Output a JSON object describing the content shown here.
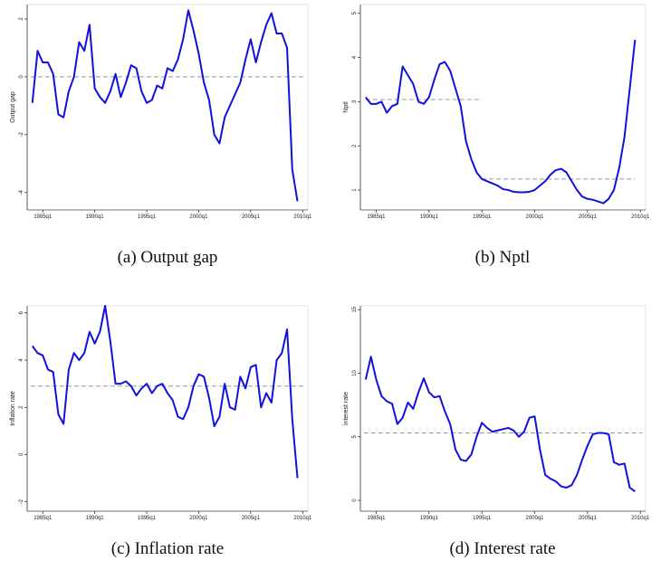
{
  "chart_data": [
    {
      "type": "line",
      "caption": "(a) Output gap",
      "ylabel": "Output gap",
      "color": "#1010e0",
      "x": [
        "1984q1",
        "1984q3",
        "1985q1",
        "1985q3",
        "1986q1",
        "1986q3",
        "1987q1",
        "1987q3",
        "1988q1",
        "1988q3",
        "1989q1",
        "1989q3",
        "1990q1",
        "1990q3",
        "1991q1",
        "1991q3",
        "1992q1",
        "1992q3",
        "1993q1",
        "1993q3",
        "1994q1",
        "1994q3",
        "1995q1",
        "1995q3",
        "1996q1",
        "1996q3",
        "1997q1",
        "1997q3",
        "1998q1",
        "1998q3",
        "1999q1",
        "1999q3",
        "2000q1",
        "2000q3",
        "2001q1",
        "2001q3",
        "2002q1",
        "2002q3",
        "2003q1",
        "2003q3",
        "2004q1",
        "2004q3",
        "2005q1",
        "2005q3",
        "2006q1",
        "2006q3",
        "2007q1",
        "2007q3",
        "2008q1",
        "2008q3",
        "2009q1",
        "2009q3"
      ],
      "values": [
        -0.9,
        0.9,
        0.5,
        0.5,
        0.1,
        -1.3,
        -1.4,
        -0.5,
        0,
        1.2,
        0.9,
        1.8,
        -0.4,
        -0.7,
        -0.9,
        -0.5,
        0.1,
        -0.7,
        -0.2,
        0.4,
        0.3,
        -0.5,
        -0.9,
        -0.8,
        -0.3,
        -0.4,
        0.3,
        0.2,
        0.6,
        1.3,
        2.3,
        1.6,
        0.8,
        -0.2,
        -0.8,
        -2.0,
        -2.3,
        -1.4,
        -1.0,
        -0.6,
        -0.2,
        0.6,
        1.3,
        0.5,
        1.2,
        1.8,
        2.2,
        1.5,
        1.5,
        1.0,
        -3.2,
        -4.3
      ],
      "xlim": [
        "1983q3",
        "2010q3"
      ],
      "xticks": [
        "1985q1",
        "1990q1",
        "1995q1",
        "2000q1",
        "2005q1",
        "2010q1"
      ],
      "ylim": [
        -4.6,
        2.5
      ],
      "yticks": [
        -4,
        -2,
        0,
        2
      ],
      "reference_lines": [
        {
          "y": 0,
          "color": "#999999"
        }
      ]
    },
    {
      "type": "line",
      "caption": "(b) Nptl",
      "ylabel": "Nptl",
      "color": "#1010e0",
      "x": [
        "1984q1",
        "1984q3",
        "1985q1",
        "1985q3",
        "1986q1",
        "1986q3",
        "1987q1",
        "1987q3",
        "1988q1",
        "1988q3",
        "1989q1",
        "1989q3",
        "1990q1",
        "1990q3",
        "1991q1",
        "1991q3",
        "1992q1",
        "1992q3",
        "1993q1",
        "1993q3",
        "1994q1",
        "1994q3",
        "1995q1",
        "1995q3",
        "1996q1",
        "1996q3",
        "1997q1",
        "1997q3",
        "1998q1",
        "1998q3",
        "1999q1",
        "1999q3",
        "2000q1",
        "2000q3",
        "2001q1",
        "2001q3",
        "2002q1",
        "2002q3",
        "2003q1",
        "2003q3",
        "2004q1",
        "2004q3",
        "2005q1",
        "2005q3",
        "2006q1",
        "2006q3",
        "2007q1",
        "2007q3",
        "2008q1",
        "2008q3",
        "2009q1",
        "2009q3"
      ],
      "values": [
        3.1,
        2.95,
        2.95,
        3.0,
        2.75,
        2.9,
        2.95,
        3.8,
        3.6,
        3.4,
        3.0,
        2.95,
        3.1,
        3.5,
        3.85,
        3.9,
        3.7,
        3.3,
        2.9,
        2.1,
        1.7,
        1.4,
        1.25,
        1.2,
        1.15,
        1.1,
        1.02,
        1.0,
        0.96,
        0.95,
        0.95,
        0.96,
        1.0,
        1.1,
        1.2,
        1.35,
        1.45,
        1.48,
        1.4,
        1.2,
        1.0,
        0.85,
        0.8,
        0.78,
        0.74,
        0.7,
        0.8,
        1.0,
        1.5,
        2.2,
        3.3,
        4.4
      ],
      "xlim": [
        "1983q3",
        "2010q3"
      ],
      "xticks": [
        "1985q1",
        "1990q1",
        "1995q1",
        "2000q1",
        "2005q1",
        "2010q1"
      ],
      "ylim": [
        0.55,
        5.2
      ],
      "yticks": [
        1,
        2,
        3,
        4,
        5
      ],
      "reference_lines": [
        {
          "y": 3.05,
          "from": "1984q1",
          "to": "1995q1",
          "color": "#999999"
        },
        {
          "y": 1.25,
          "from": "1995q1",
          "to": "2009q3",
          "color": "#999999"
        }
      ]
    },
    {
      "type": "line",
      "caption": "(c) Inflation rate",
      "ylabel": "Inflation rate",
      "color": "#1010e0",
      "x": [
        "1984q1",
        "1984q3",
        "1985q1",
        "1985q3",
        "1986q1",
        "1986q3",
        "1987q1",
        "1987q3",
        "1988q1",
        "1988q3",
        "1989q1",
        "1989q3",
        "1990q1",
        "1990q3",
        "1991q1",
        "1991q3",
        "1992q1",
        "1992q3",
        "1993q1",
        "1993q3",
        "1994q1",
        "1994q3",
        "1995q1",
        "1995q3",
        "1996q1",
        "1996q3",
        "1997q1",
        "1997q3",
        "1998q1",
        "1998q3",
        "1999q1",
        "1999q3",
        "2000q1",
        "2000q3",
        "2001q1",
        "2001q3",
        "2002q1",
        "2002q3",
        "2003q1",
        "2003q3",
        "2004q1",
        "2004q3",
        "2005q1",
        "2005q3",
        "2006q1",
        "2006q3",
        "2007q1",
        "2007q3",
        "2008q1",
        "2008q3",
        "2009q1",
        "2009q3"
      ],
      "values": [
        4.6,
        4.3,
        4.2,
        3.6,
        3.5,
        1.7,
        1.3,
        3.6,
        4.3,
        4.0,
        4.3,
        5.2,
        4.7,
        5.2,
        6.3,
        4.8,
        3.0,
        3.0,
        3.1,
        2.9,
        2.5,
        2.8,
        3.0,
        2.6,
        2.9,
        3.0,
        2.6,
        2.3,
        1.6,
        1.5,
        2.0,
        2.9,
        3.4,
        3.3,
        2.4,
        1.2,
        1.6,
        3.0,
        2.0,
        1.9,
        3.3,
        2.8,
        3.7,
        3.8,
        2.0,
        2.6,
        2.2,
        4.0,
        4.3,
        5.3,
        1.5,
        -1.0
      ],
      "xlim": [
        "1983q3",
        "2010q3"
      ],
      "xticks": [
        "1985q1",
        "1990q1",
        "1995q1",
        "2000q1",
        "2005q1",
        "2010q1"
      ],
      "ylim": [
        -2.4,
        6.3
      ],
      "yticks": [
        -2,
        0,
        2,
        4,
        6
      ],
      "reference_lines": [
        {
          "y": 2.9,
          "color": "#999999"
        }
      ]
    },
    {
      "type": "line",
      "caption": "(d) Interest rate",
      "ylabel": "interest rate",
      "color": "#1010e0",
      "x": [
        "1984q1",
        "1984q3",
        "1985q1",
        "1985q3",
        "1986q1",
        "1986q3",
        "1987q1",
        "1987q3",
        "1988q1",
        "1988q3",
        "1989q1",
        "1989q3",
        "1990q1",
        "1990q3",
        "1991q1",
        "1991q3",
        "1992q1",
        "1992q3",
        "1993q1",
        "1993q3",
        "1994q1",
        "1994q3",
        "1995q1",
        "1995q3",
        "1996q1",
        "1996q3",
        "1997q1",
        "1997q3",
        "1998q1",
        "1998q3",
        "1999q1",
        "1999q3",
        "2000q1",
        "2000q3",
        "2001q1",
        "2001q3",
        "2002q1",
        "2002q3",
        "2003q1",
        "2003q3",
        "2004q1",
        "2004q3",
        "2005q1",
        "2005q3",
        "2006q1",
        "2006q3",
        "2007q1",
        "2007q3",
        "2008q1",
        "2008q3",
        "2009q1",
        "2009q3"
      ],
      "values": [
        9.5,
        11.3,
        9.5,
        8.2,
        7.8,
        7.6,
        6.0,
        6.5,
        7.7,
        7.2,
        8.5,
        9.6,
        8.5,
        8.1,
        8.2,
        7.0,
        6.0,
        4.0,
        3.2,
        3.1,
        3.6,
        5.0,
        6.1,
        5.7,
        5.4,
        5.5,
        5.6,
        5.7,
        5.5,
        5.0,
        5.4,
        6.5,
        6.6,
        4.0,
        2.0,
        1.7,
        1.5,
        1.1,
        1.0,
        1.2,
        2.0,
        3.2,
        4.3,
        5.2,
        5.3,
        5.3,
        5.2,
        3.0,
        2.8,
        2.9,
        1.0,
        0.7
      ],
      "xlim": [
        "1983q3",
        "2010q3"
      ],
      "xticks": [
        "1985q1",
        "1990q1",
        "1995q1",
        "2000q1",
        "2005q1",
        "2010q1"
      ],
      "ylim": [
        -0.85,
        15.3
      ],
      "yticks": [
        0,
        5,
        10,
        15
      ],
      "reference_lines": [
        {
          "y": 5.3,
          "color": "#999999"
        }
      ]
    }
  ]
}
